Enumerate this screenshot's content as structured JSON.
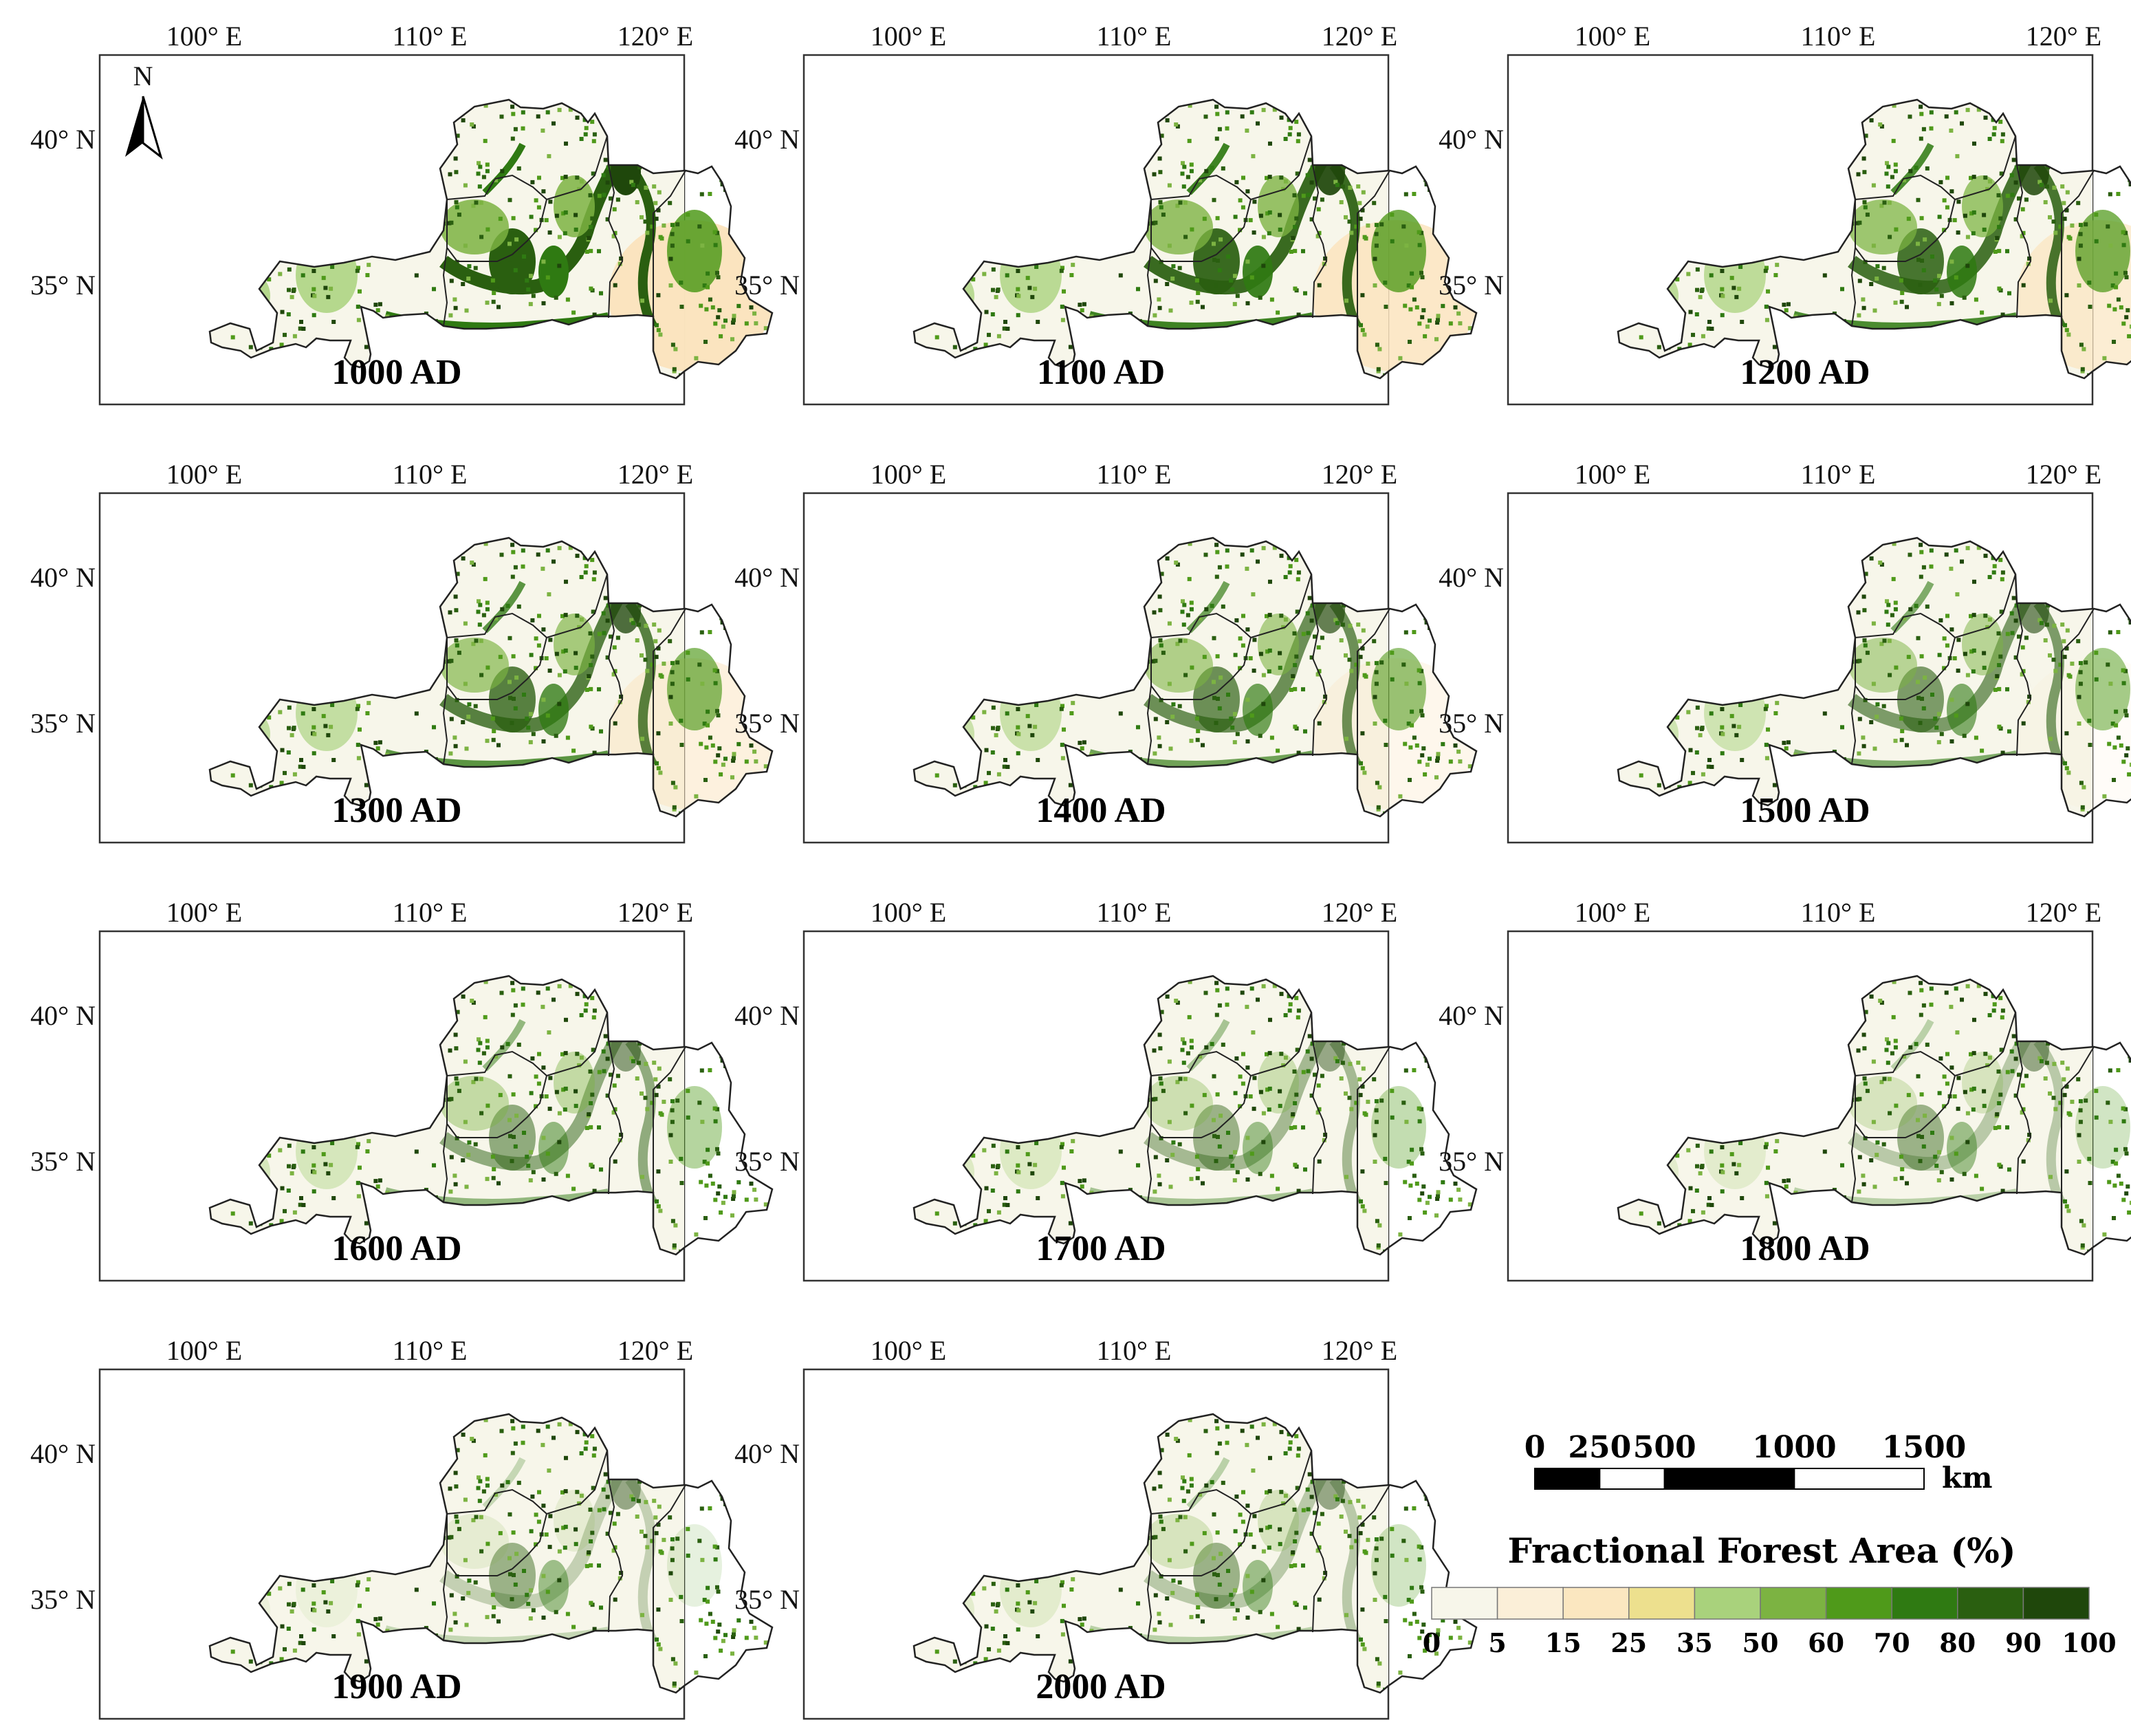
{
  "figure": {
    "lon_labels": [
      "100° E",
      "110° E",
      "120° E"
    ],
    "lat_labels": [
      "40° N",
      "35° N"
    ],
    "north_arrow_label": "N",
    "panels": [
      {
        "title": "1000 AD",
        "forest_level": 1.0
      },
      {
        "title": "1100 AD",
        "forest_level": 0.93
      },
      {
        "title": "1200 AD",
        "forest_level": 0.86
      },
      {
        "title": "1300 AD",
        "forest_level": 0.78
      },
      {
        "title": "1400 AD",
        "forest_level": 0.68
      },
      {
        "title": "1500 AD",
        "forest_level": 0.6
      },
      {
        "title": "1600 AD",
        "forest_level": 0.5
      },
      {
        "title": "1700 AD",
        "forest_level": 0.4
      },
      {
        "title": "1800 AD",
        "forest_level": 0.3
      },
      {
        "title": "1900 AD",
        "forest_level": 0.16
      },
      {
        "title": "2000 AD",
        "forest_level": 0.3
      }
    ]
  },
  "scale_bar": {
    "tick_labels": [
      "0",
      "250",
      "500",
      "1000",
      "1500"
    ],
    "tick_values": [
      0,
      250,
      500,
      1000,
      1500
    ],
    "unit": "km"
  },
  "legend": {
    "title": "Fractional Forest Area (%)",
    "breaks": [
      "0",
      "5",
      "15",
      "25",
      "35",
      "50",
      "60",
      "70",
      "80",
      "90",
      "100"
    ],
    "colors": [
      "#f7f6ea",
      "#fbefd8",
      "#fbe7c0",
      "#ede08e",
      "#a9d27c",
      "#7cb342",
      "#4f9a1a",
      "#2f7a12",
      "#2a5f10",
      "#1f470b"
    ]
  }
}
